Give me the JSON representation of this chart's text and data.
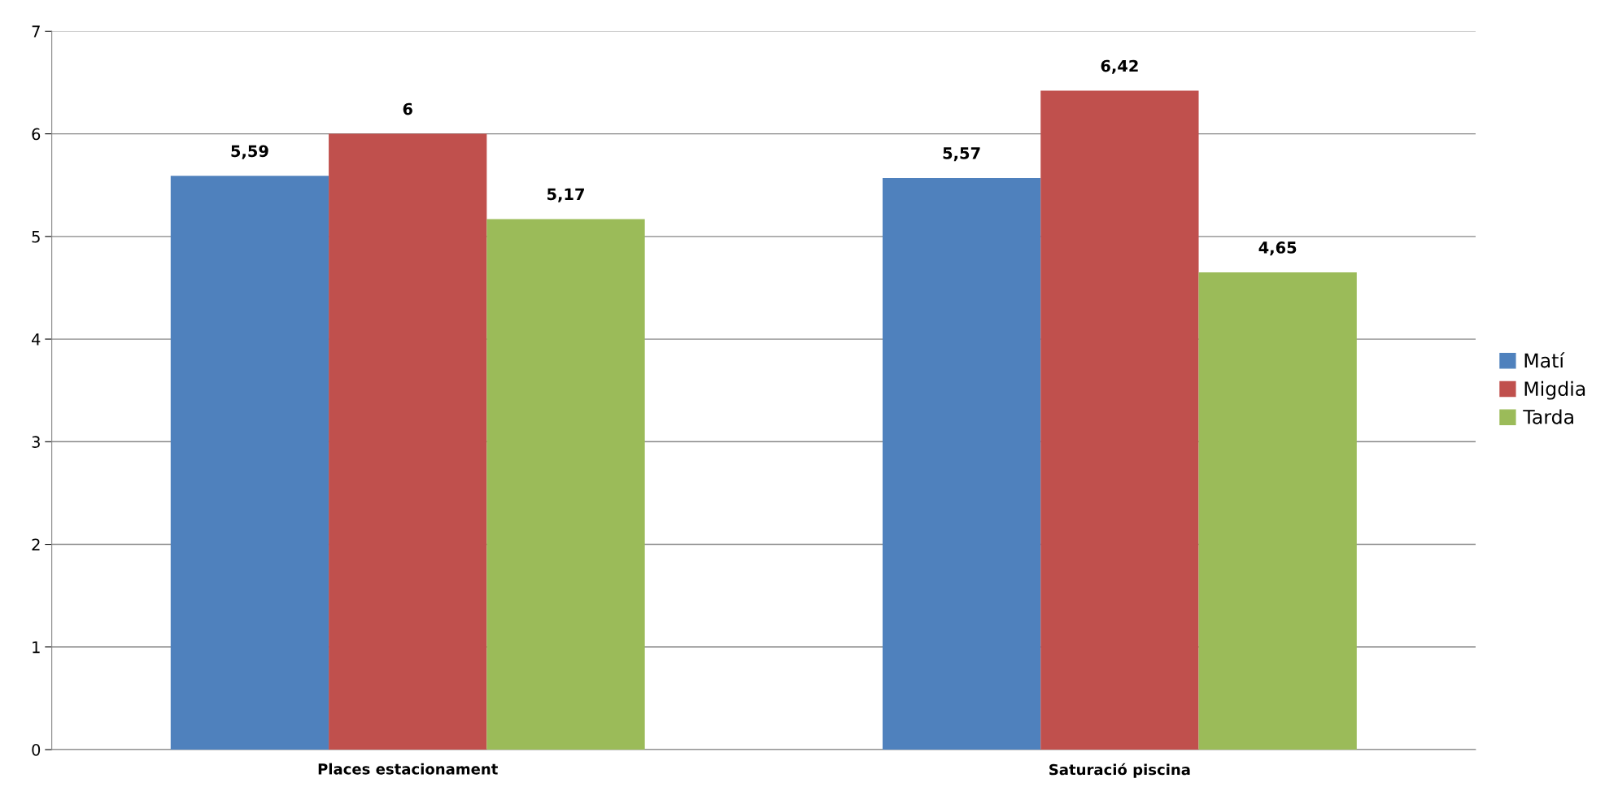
{
  "chart_data": {
    "type": "bar",
    "categories": [
      "Places estacionament",
      "Saturació piscina"
    ],
    "series": [
      {
        "name": "Matí",
        "color": "#4f81bd",
        "values": [
          5.59,
          5.57
        ],
        "value_labels": [
          "5,59",
          "5,57"
        ]
      },
      {
        "name": "Migdia",
        "color": "#c0504d",
        "values": [
          6,
          6.42
        ],
        "value_labels": [
          "6",
          "6,42"
        ]
      },
      {
        "name": "Tarda",
        "color": "#9bbb59",
        "values": [
          5.17,
          4.65
        ],
        "value_labels": [
          "5,17",
          "4,65"
        ]
      }
    ],
    "ylim": [
      0,
      7
    ],
    "yticks": [
      0,
      1,
      2,
      3,
      4,
      5,
      6,
      7
    ],
    "grid": "y",
    "legend": "right"
  }
}
